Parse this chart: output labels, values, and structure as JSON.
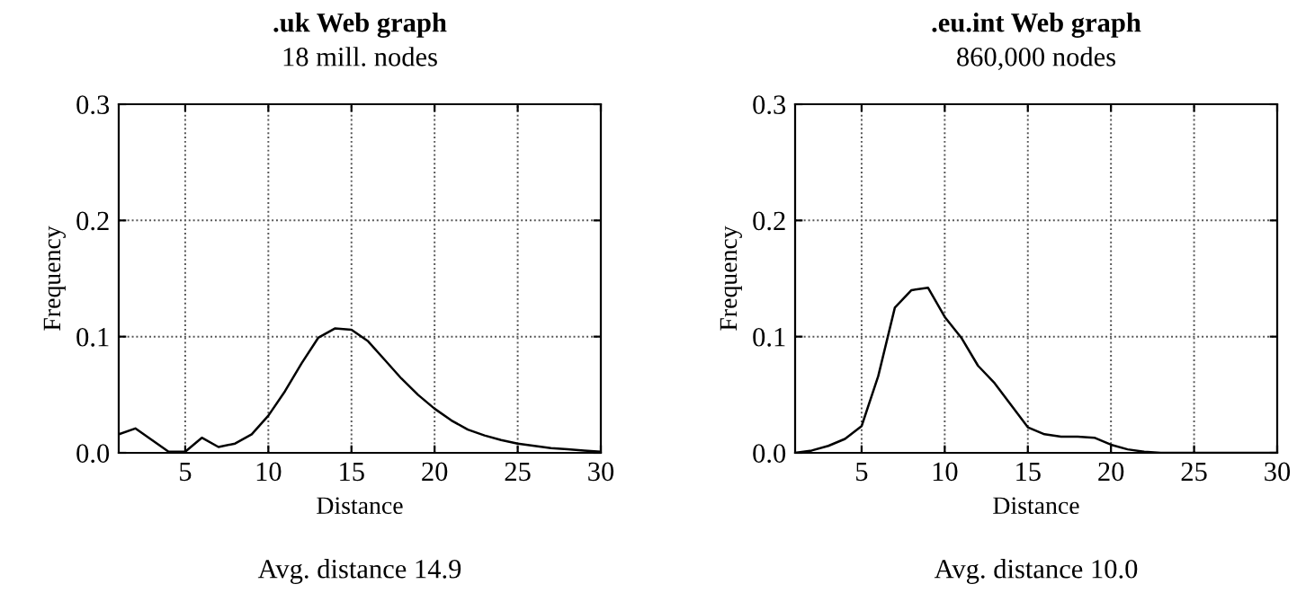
{
  "chart_data": [
    {
      "type": "line",
      "title": ".uk Web graph",
      "subtitle": "18 mill. nodes",
      "xlabel": "Distance",
      "ylabel": "Frequency",
      "annotations": [
        "Avg. distance 14.9"
      ],
      "x": [
        1,
        2,
        3,
        4,
        5,
        6,
        7,
        8,
        9,
        10,
        11,
        12,
        13,
        14,
        15,
        16,
        17,
        18,
        19,
        20,
        21,
        22,
        23,
        24,
        25,
        26,
        27,
        28,
        29,
        30
      ],
      "series": [
        {
          "color": "#000000",
          "values": [
            0.016,
            0.021,
            0.011,
            0.001,
            0.001,
            0.013,
            0.005,
            0.008,
            0.016,
            0.032,
            0.053,
            0.077,
            0.099,
            0.107,
            0.106,
            0.096,
            0.08,
            0.064,
            0.05,
            0.038,
            0.028,
            0.02,
            0.015,
            0.011,
            0.008,
            0.006,
            0.004,
            0.003,
            0.002,
            0.001
          ]
        }
      ],
      "xlim": [
        1,
        30
      ],
      "xticks": [
        5,
        10,
        15,
        20,
        25,
        30
      ],
      "ylim": [
        0,
        0.3
      ],
      "yticks": [
        {
          "value": 0,
          "label": "0.0"
        },
        0.1,
        0.2,
        0.3
      ],
      "grid": true,
      "line_style": "solid",
      "marker": "none"
    },
    {
      "type": "line",
      "title": ".eu.int Web graph",
      "subtitle": "860,000 nodes",
      "xlabel": "Distance",
      "ylabel": "Frequency",
      "annotations": [
        "Avg. distance 10.0"
      ],
      "x": [
        1,
        2,
        3,
        4,
        5,
        6,
        7,
        8,
        9,
        10,
        11,
        12,
        13,
        14,
        15,
        16,
        17,
        18,
        19,
        20,
        21,
        22,
        23,
        24,
        25,
        26,
        27,
        28,
        29,
        30
      ],
      "series": [
        {
          "color": "#000000",
          "values": [
            0,
            0.002,
            0.006,
            0.012,
            0.023,
            0.066,
            0.125,
            0.14,
            0.142,
            0.117,
            0.099,
            0.075,
            0.06,
            0.041,
            0.022,
            0.016,
            0.014,
            0.014,
            0.013,
            0.007,
            0.003,
            0.001,
            0,
            0,
            0,
            0,
            0,
            0,
            0,
            0
          ]
        }
      ],
      "xlim": [
        1,
        30
      ],
      "xticks": [
        5,
        10,
        15,
        20,
        25,
        30
      ],
      "ylim": [
        0,
        0.3
      ],
      "yticks": [
        {
          "value": 0,
          "label": "0.0"
        },
        0.1,
        0.2,
        0.3
      ],
      "grid": true,
      "line_style": "solid",
      "marker": "none"
    }
  ]
}
